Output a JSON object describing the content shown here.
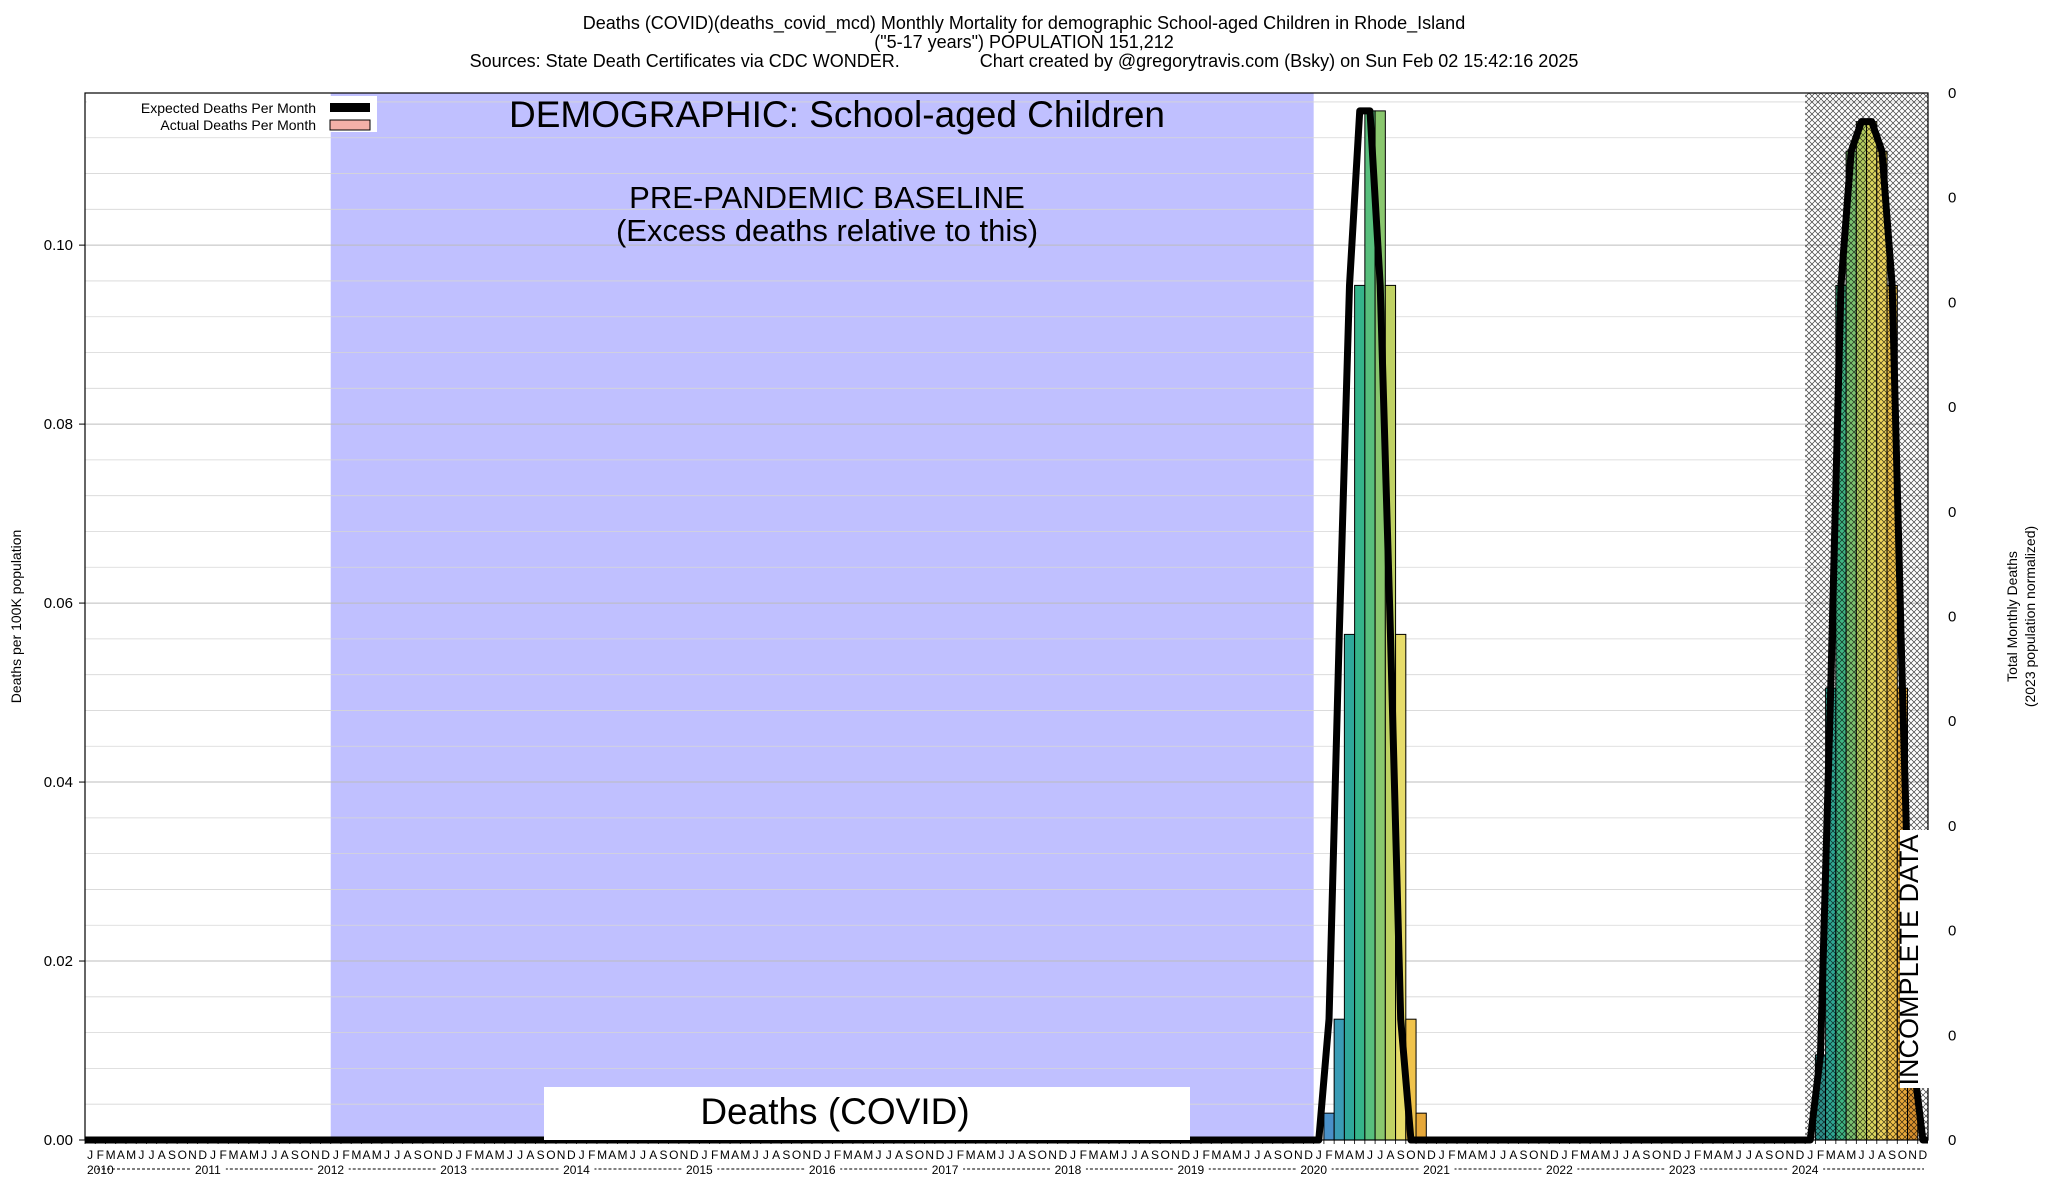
{
  "header": {
    "title": "Deaths (COVID)(deaths_covid_mcd) Monthly Mortality for demographic School-aged Children in Rhode_Island",
    "subtitle": "(\"5-17 years\") POPULATION 151,212",
    "sources": "Sources: State Death Certificates via CDC WONDER.                Chart created by @gregorytravis.com (Bsky) on Sun Feb 02 15:42:16 2025"
  },
  "chart_data": {
    "type": "bar",
    "ylabel": "Deaths per 100K population",
    "y2label_line1": "Total Monthly Deaths",
    "y2label_line2": "(2023 population normalized)",
    "ylim": [
      0,
      0.117
    ],
    "yticks": [
      "0.00",
      "0.02",
      "0.04",
      "0.06",
      "0.08",
      "0.10"
    ],
    "ytick_values": [
      0,
      0.02,
      0.04,
      0.06,
      0.08,
      0.1
    ],
    "y2ticks": [
      "0",
      "0",
      "0",
      "0",
      "0",
      "0",
      "0",
      "0",
      "0",
      "0",
      "0"
    ],
    "x_start": "2010-01",
    "x_end": "2024-12",
    "month_letters": [
      "J",
      "F",
      "M",
      "A",
      "M",
      "J",
      "J",
      "A",
      "S",
      "O",
      "N",
      "D"
    ],
    "years": [
      "2010",
      "2011",
      "2012",
      "2013",
      "2014",
      "2015",
      "2016",
      "2017",
      "2018",
      "2019",
      "2020",
      "2021",
      "2022",
      "2023",
      "2024"
    ],
    "legend": {
      "expected_label": "Expected Deaths Per Month",
      "actual_label": "Actual Deaths Per Month",
      "expected_color": "#000000",
      "actual_color": "#f4b0a8"
    },
    "grid": true,
    "baseline_region": {
      "start": "2012-01",
      "end": "2019-12",
      "color": "#c0c0ff"
    },
    "incomplete_region": {
      "start": "2024-01",
      "end": "2024-12"
    },
    "annotations": {
      "demographic": "DEMOGRAPHIC: School-aged Children",
      "baseline_line1": "PRE-PANDEMIC BASELINE",
      "baseline_line2": "(Excess deaths relative to this)",
      "measure": "Deaths (COVID)",
      "incomplete": "INCOMPLETE DATA"
    },
    "expected_series": {
      "name": "Expected Deaths Per Month",
      "peaks": [
        {
          "center": "2020-05",
          "peak": 0.117,
          "months": [
            "2020-01",
            "2020-02",
            "2020-03",
            "2020-04",
            "2020-05",
            "2020-06",
            "2020-07",
            "2020-08",
            "2020-09",
            "2020-10"
          ],
          "values": [
            0.0,
            0.0135,
            0.0565,
            0.0955,
            0.115,
            0.115,
            0.0955,
            0.0565,
            0.0135,
            0.0
          ]
        },
        {
          "center": "2024-07",
          "peak": 0.114,
          "months": [
            "2024-01",
            "2024-02",
            "2024-03",
            "2024-04",
            "2024-05",
            "2024-06",
            "2024-07",
            "2024-08",
            "2024-09",
            "2024-10",
            "2024-11",
            "2024-12"
          ],
          "values": [
            0.0,
            0.0095,
            0.0505,
            0.0955,
            0.1105,
            0.1138,
            0.1138,
            0.1105,
            0.0955,
            0.0505,
            0.0095,
            0.0
          ]
        }
      ]
    },
    "actual_bars": [
      {
        "month": "2020-02",
        "value": 0.003,
        "color": "#4a90c8"
      },
      {
        "month": "2020-03",
        "value": 0.0135,
        "color": "#3a9cb5"
      },
      {
        "month": "2020-04",
        "value": 0.0565,
        "color": "#2fa89a"
      },
      {
        "month": "2020-05",
        "value": 0.0955,
        "color": "#35b48a"
      },
      {
        "month": "2020-06",
        "value": 0.115,
        "color": "#58bf7d"
      },
      {
        "month": "2020-07",
        "value": 0.115,
        "color": "#8ac76e"
      },
      {
        "month": "2020-08",
        "value": 0.0955,
        "color": "#c0d264"
      },
      {
        "month": "2020-09",
        "value": 0.0565,
        "color": "#e7dc6a"
      },
      {
        "month": "2020-10",
        "value": 0.0135,
        "color": "#f0c34c"
      },
      {
        "month": "2020-11",
        "value": 0.003,
        "color": "#e6a83a"
      },
      {
        "month": "2024-02",
        "value": 0.0095,
        "color": "#2e8f8a"
      },
      {
        "month": "2024-03",
        "value": 0.0505,
        "color": "#2fa894"
      },
      {
        "month": "2024-04",
        "value": 0.0955,
        "color": "#3fb584"
      },
      {
        "month": "2024-05",
        "value": 0.1105,
        "color": "#7cc371"
      },
      {
        "month": "2024-06",
        "value": 0.1138,
        "color": "#b5cf63"
      },
      {
        "month": "2024-07",
        "value": 0.1138,
        "color": "#dcd860"
      },
      {
        "month": "2024-08",
        "value": 0.1105,
        "color": "#eed55e"
      },
      {
        "month": "2024-09",
        "value": 0.0955,
        "color": "#f0c24a"
      },
      {
        "month": "2024-10",
        "value": 0.0505,
        "color": "#e8a93b"
      },
      {
        "month": "2024-11",
        "value": 0.0095,
        "color": "#d9912e"
      }
    ]
  }
}
